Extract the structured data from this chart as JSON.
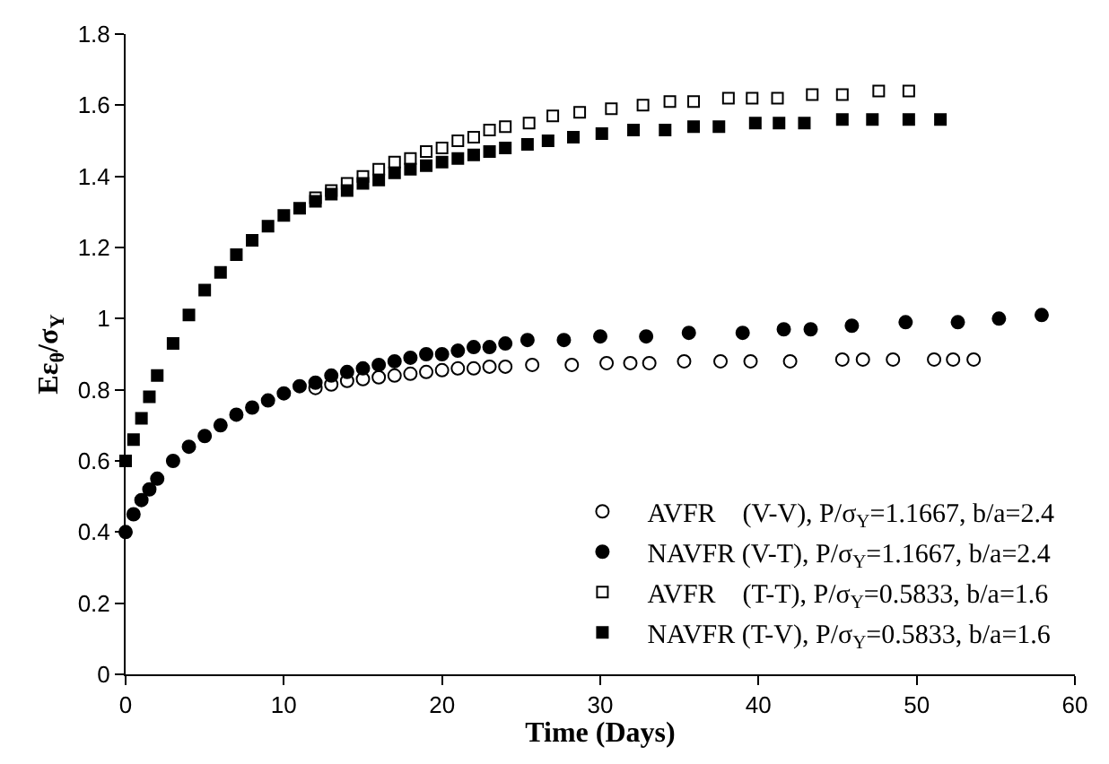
{
  "chart_data": {
    "type": "scatter",
    "xlabel": "Time (Days)",
    "ylabel": "Eε$_{θ}$/σ$_{Y}$",
    "xlim": [
      0,
      60
    ],
    "xticks": [
      0,
      10,
      20,
      30,
      40,
      50,
      60
    ],
    "ylim": [
      0,
      1.8
    ],
    "yticks": [
      0,
      0.2,
      0.4,
      0.6,
      0.8,
      1,
      1.2,
      1.4,
      1.6,
      1.8
    ],
    "legend": "bottom right",
    "series": [
      {
        "name": "AVFR    (V-V), P/σ$_{Y}$=1.1667, b/a=2.4",
        "color": "#ffffff",
        "marker": "circle",
        "x": [
          12,
          13,
          14,
          15,
          16,
          17,
          18,
          19,
          20,
          21,
          22,
          23,
          24,
          25.7,
          28.2,
          30.4,
          31.9,
          33.1,
          35.3,
          37.6,
          39.5,
          42,
          45.3,
          46.6,
          48.5,
          51.1,
          52.3,
          53.6
        ],
        "values": [
          0.805,
          0.815,
          0.825,
          0.83,
          0.835,
          0.84,
          0.845,
          0.85,
          0.855,
          0.86,
          0.86,
          0.865,
          0.865,
          0.87,
          0.87,
          0.875,
          0.875,
          0.875,
          0.88,
          0.88,
          0.88,
          0.88,
          0.885,
          0.885,
          0.885,
          0.885,
          0.885,
          0.885
        ]
      },
      {
        "name": "NAVFR (V-T), P/σ$_{Y}$=1.1667, b/a=2.4",
        "color": "#000000",
        "marker": "circle",
        "x": [
          0,
          0.5,
          1,
          1.5,
          2,
          3,
          4,
          5,
          6,
          7,
          8,
          9,
          10,
          11,
          12,
          13,
          14,
          15,
          16,
          17,
          18,
          19,
          20,
          21,
          22,
          23,
          24,
          25.4,
          27.7,
          30,
          32.9,
          35.6,
          39,
          41.6,
          43.3,
          45.9,
          49.3,
          52.6,
          55.2,
          57.9
        ],
        "values": [
          0.4,
          0.45,
          0.49,
          0.52,
          0.55,
          0.6,
          0.64,
          0.67,
          0.7,
          0.73,
          0.75,
          0.77,
          0.79,
          0.81,
          0.82,
          0.84,
          0.85,
          0.86,
          0.87,
          0.88,
          0.89,
          0.9,
          0.9,
          0.91,
          0.92,
          0.92,
          0.93,
          0.94,
          0.94,
          0.95,
          0.95,
          0.96,
          0.96,
          0.97,
          0.97,
          0.98,
          0.99,
          0.99,
          1.0,
          1.01
        ]
      },
      {
        "name": "AVFR    (T-T), P/σ$_{Y}$=0.5833, b/a=1.6",
        "color": "#ffffff",
        "marker": "square",
        "x": [
          12,
          13,
          14,
          15,
          16,
          17,
          18,
          19,
          20,
          21,
          22,
          23,
          24,
          25.5,
          27,
          28.7,
          30.7,
          32.7,
          34.4,
          35.9,
          38.1,
          39.6,
          41.2,
          43.4,
          45.3,
          47.6,
          49.5
        ],
        "values": [
          1.34,
          1.36,
          1.38,
          1.4,
          1.42,
          1.44,
          1.45,
          1.47,
          1.48,
          1.5,
          1.51,
          1.53,
          1.54,
          1.55,
          1.57,
          1.58,
          1.59,
          1.6,
          1.61,
          1.61,
          1.62,
          1.62,
          1.62,
          1.63,
          1.63,
          1.64,
          1.64
        ]
      },
      {
        "name": "NAVFR (T-V), P/σ$_{Y}$=0.5833, b/a=1.6",
        "color": "#000000",
        "marker": "square",
        "x": [
          0,
          0.5,
          1,
          1.5,
          2,
          3,
          4,
          5,
          6,
          7,
          8,
          9,
          10,
          11,
          12,
          13,
          14,
          15,
          16,
          17,
          18,
          19,
          20,
          21,
          22,
          23,
          24,
          25.4,
          26.7,
          28.3,
          30.1,
          32.1,
          34.1,
          35.9,
          37.5,
          39.8,
          41.3,
          42.9,
          45.3,
          47.2,
          49.5,
          51.5
        ],
        "values": [
          0.6,
          0.66,
          0.72,
          0.78,
          0.84,
          0.93,
          1.01,
          1.08,
          1.13,
          1.18,
          1.22,
          1.26,
          1.29,
          1.31,
          1.33,
          1.35,
          1.36,
          1.38,
          1.39,
          1.41,
          1.42,
          1.43,
          1.44,
          1.45,
          1.46,
          1.47,
          1.48,
          1.49,
          1.5,
          1.51,
          1.52,
          1.53,
          1.53,
          1.54,
          1.54,
          1.55,
          1.55,
          1.55,
          1.56,
          1.56,
          1.56,
          1.56
        ]
      }
    ]
  }
}
